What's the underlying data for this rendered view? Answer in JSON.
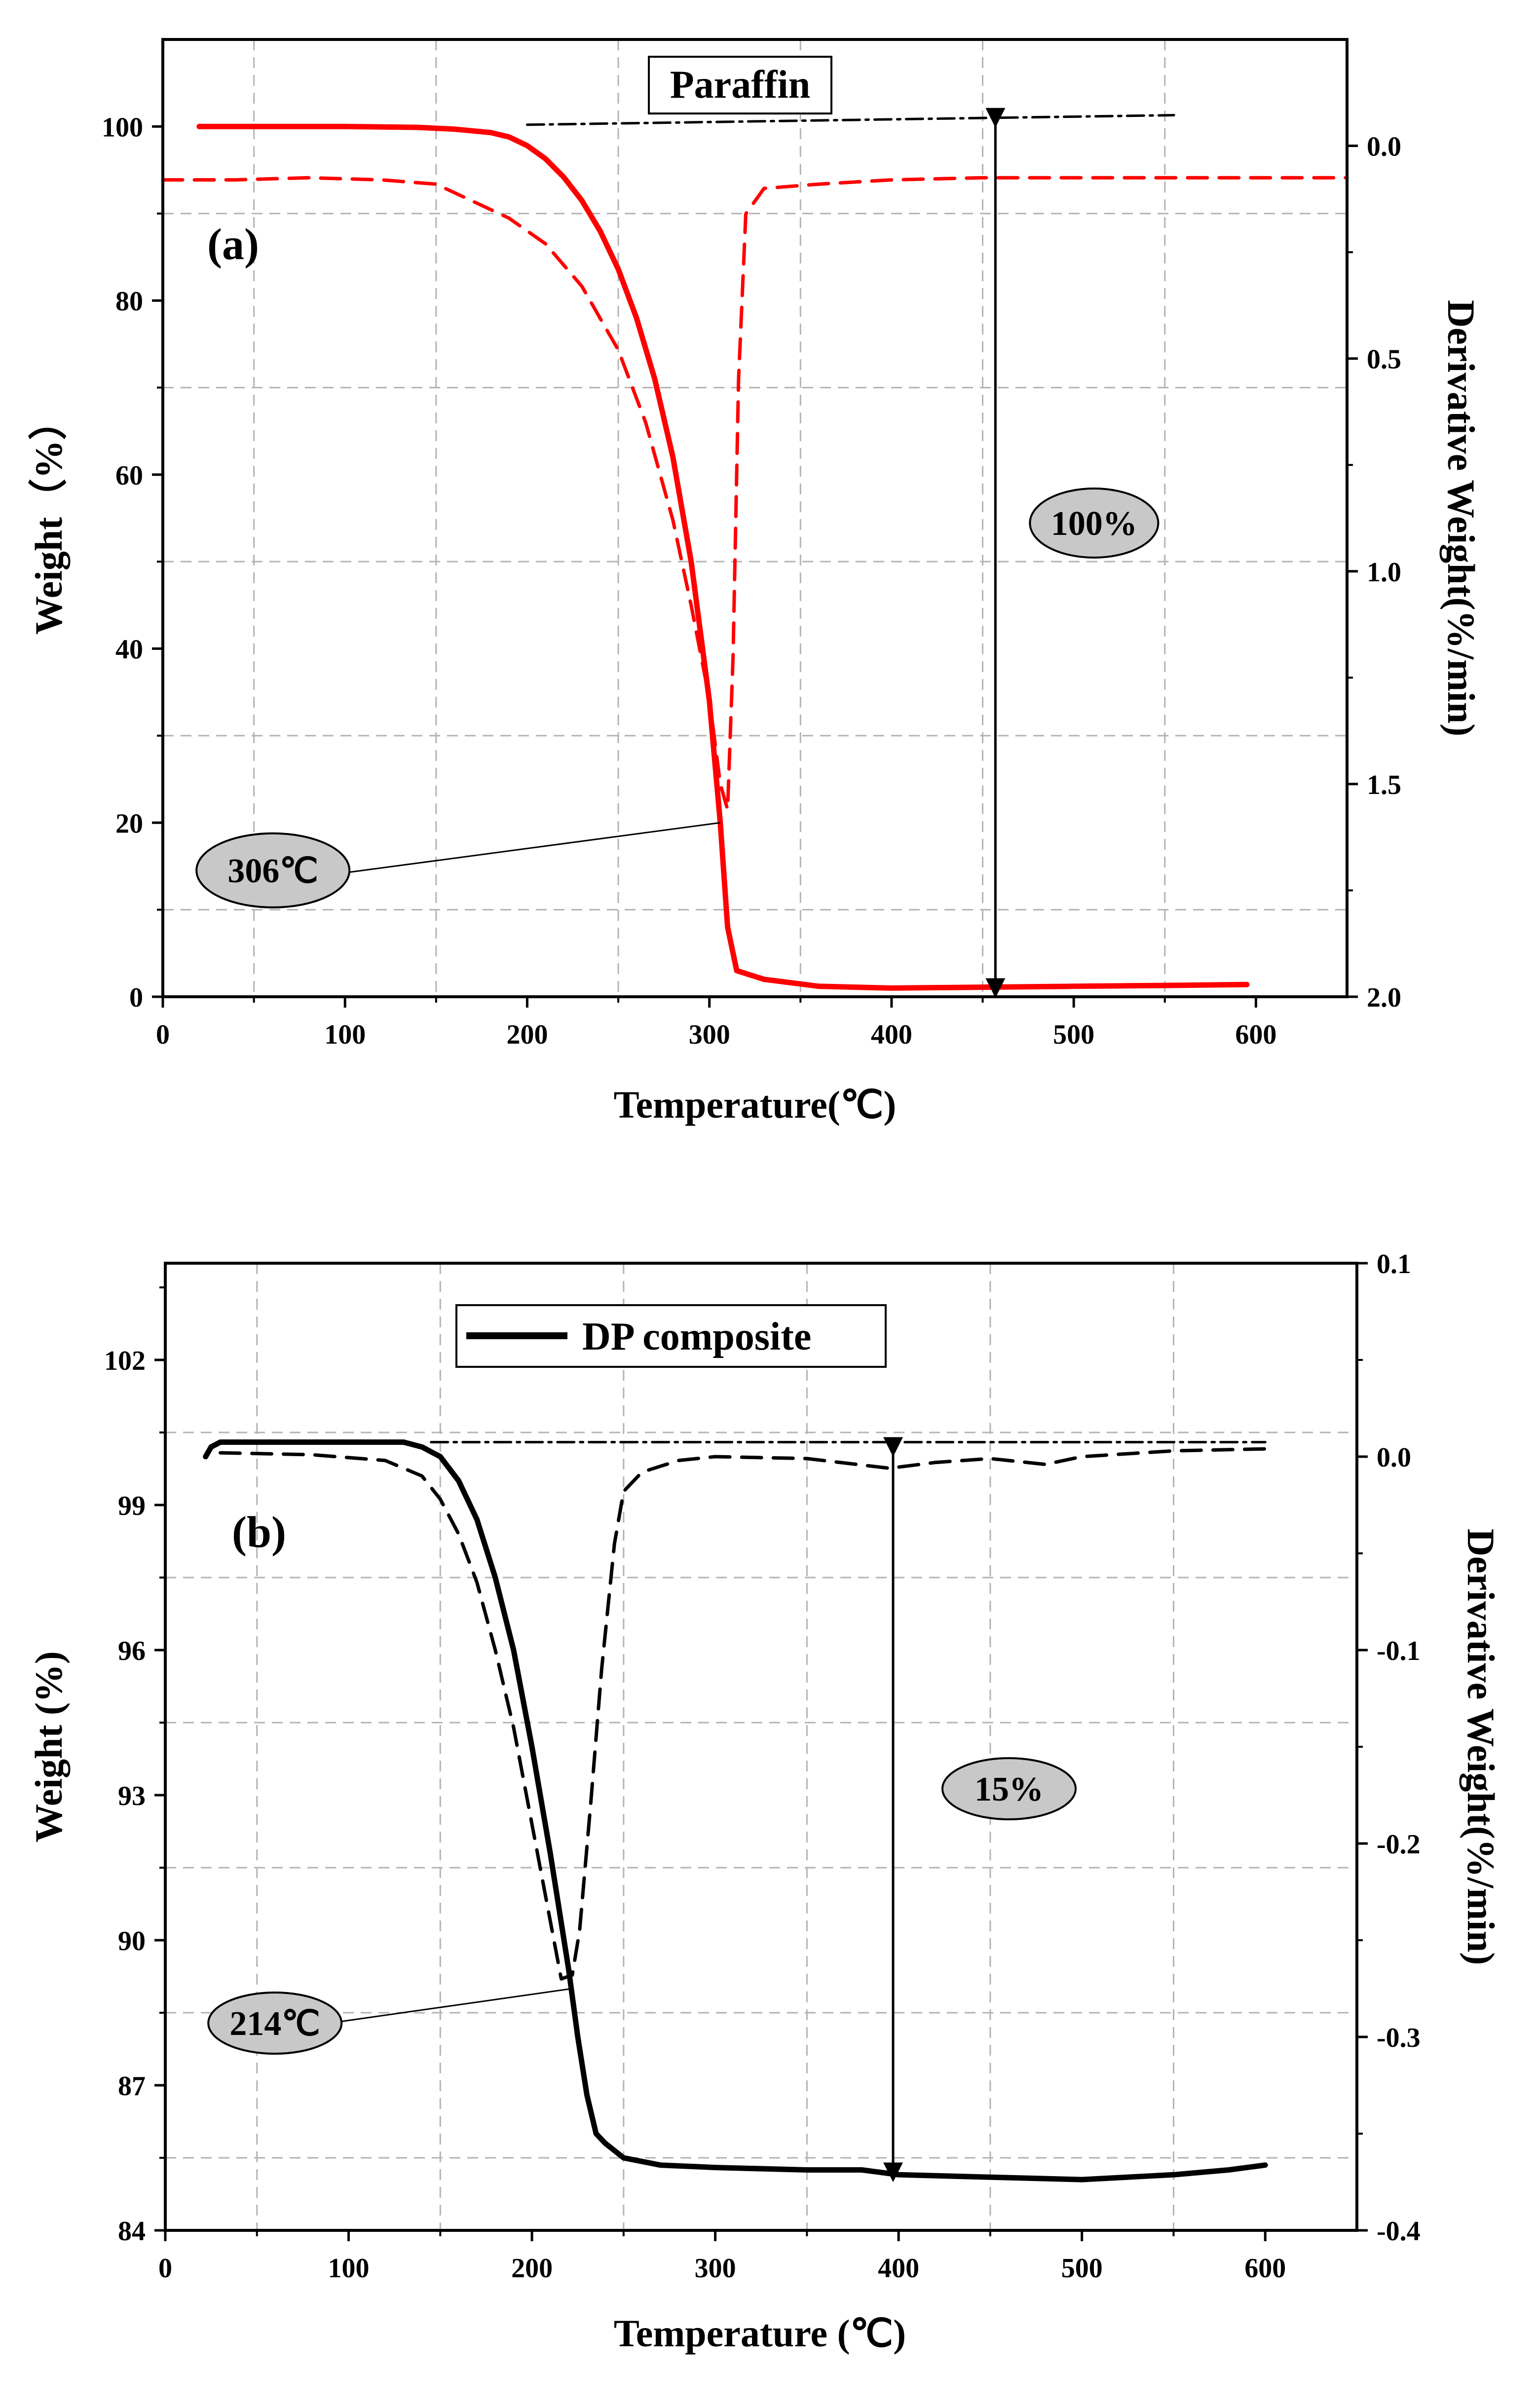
{
  "chart_data": [
    {
      "type": "line",
      "panel_label": "(a)",
      "legend_box": "Paraffin",
      "xlabel": "Temperature(℃)",
      "ylabel": "Weight（%）",
      "y2label": "Derivative Weight(%/min)",
      "xlim": [
        0,
        650
      ],
      "ylim": [
        0,
        110
      ],
      "y2lim": [
        2.0,
        -0.25
      ],
      "x_ticks": [
        "0",
        "100",
        "200",
        "300",
        "400",
        "500",
        "600"
      ],
      "y_ticks": [
        "0",
        "20",
        "40",
        "60",
        "80",
        "100"
      ],
      "y2_ticks": [
        "0.0",
        "0.5",
        "1.0",
        "1.5",
        "2.0"
      ],
      "grid": true,
      "colors": {
        "weight": "#ff0000",
        "derivative": "#ff0000",
        "baseline": "#000000",
        "bubble": "#c8c8c8"
      },
      "series": [
        {
          "name": "Weight",
          "axis": "left",
          "style": "solid",
          "x": [
            20,
            60,
            100,
            140,
            160,
            180,
            190,
            200,
            210,
            220,
            230,
            240,
            250,
            260,
            270,
            280,
            290,
            300,
            306,
            310,
            315,
            330,
            360,
            400,
            450,
            500,
            550,
            595
          ],
          "y": [
            100,
            100,
            100,
            99.9,
            99.7,
            99.3,
            98.8,
            97.8,
            96.3,
            94.2,
            91.5,
            88.0,
            83.6,
            78.0,
            71.0,
            62.0,
            50.0,
            34.0,
            20.0,
            8.0,
            3.0,
            2.0,
            1.2,
            1.0,
            1.1,
            1.2,
            1.3,
            1.4
          ]
        },
        {
          "name": "Derivative weight",
          "axis": "right",
          "style": "dashed",
          "x": [
            0,
            40,
            80,
            120,
            150,
            170,
            190,
            210,
            230,
            250,
            265,
            280,
            290,
            300,
            306,
            310,
            313,
            316,
            320,
            330,
            360,
            400,
            450,
            500,
            550,
            600,
            650
          ],
          "y": [
            0.08,
            0.08,
            0.075,
            0.08,
            0.09,
            0.13,
            0.17,
            0.23,
            0.33,
            0.48,
            0.65,
            0.88,
            1.08,
            1.3,
            1.5,
            1.56,
            1.2,
            0.55,
            0.16,
            0.1,
            0.09,
            0.08,
            0.075,
            0.075,
            0.075,
            0.075,
            0.075
          ]
        },
        {
          "name": "Initial weight baseline",
          "axis": "left",
          "style": "dash-dot",
          "x": [
            200,
            555
          ],
          "y": [
            100.2,
            101.3
          ]
        }
      ],
      "annotations": [
        {
          "text": "306℃",
          "x": 306,
          "y": 20
        },
        {
          "text": "100%",
          "type": "weight-loss arrow",
          "x": 457,
          "y_from": 101,
          "y_to": 1
        }
      ]
    },
    {
      "type": "line",
      "panel_label": "(b)",
      "legend_label": "DP composite",
      "xlabel": "Temperature (℃)",
      "ylabel": "Weight (%)",
      "y2label": "Derivative Weight(%/min)",
      "xlim": [
        0,
        650
      ],
      "ylim": [
        84,
        104
      ],
      "y2lim": [
        -0.4,
        0.1
      ],
      "x_ticks": [
        "0",
        "100",
        "200",
        "300",
        "400",
        "500",
        "600"
      ],
      "y_ticks": [
        "84",
        "87",
        "90",
        "93",
        "96",
        "99",
        "102"
      ],
      "y2_ticks": [
        "-0.4",
        "-0.3",
        "-0.2",
        "-0.1",
        "0.0",
        "0.1"
      ],
      "grid": true,
      "colors": {
        "weight": "#000000",
        "derivative": "#000000",
        "baseline": "#000000",
        "bubble": "#c8c8c8"
      },
      "series": [
        {
          "name": "DP composite",
          "axis": "left",
          "style": "solid",
          "x": [
            22,
            25,
            30,
            50,
            80,
            110,
            130,
            140,
            150,
            160,
            170,
            180,
            190,
            200,
            210,
            215,
            220,
            225,
            230,
            235,
            240,
            250,
            270,
            300,
            350,
            380,
            400,
            450,
            500,
            550,
            580,
            600
          ],
          "y": [
            100.0,
            100.2,
            100.3,
            100.3,
            100.3,
            100.3,
            100.3,
            100.2,
            100.0,
            99.5,
            98.7,
            97.5,
            96.0,
            94.0,
            91.8,
            90.6,
            89.4,
            88.0,
            86.8,
            86.0,
            85.8,
            85.5,
            85.35,
            85.3,
            85.25,
            85.25,
            85.15,
            85.1,
            85.05,
            85.15,
            85.25,
            85.35
          ]
        },
        {
          "name": "Derivative weight",
          "axis": "right",
          "style": "dashed",
          "x": [
            30,
            80,
            120,
            140,
            150,
            160,
            170,
            180,
            190,
            200,
            210,
            216,
            222,
            226,
            232,
            238,
            245,
            250,
            260,
            280,
            300,
            350,
            395,
            420,
            450,
            480,
            500,
            550,
            600
          ],
          "y": [
            0.002,
            0.001,
            -0.002,
            -0.01,
            -0.022,
            -0.04,
            -0.065,
            -0.1,
            -0.14,
            -0.19,
            -0.24,
            -0.27,
            -0.268,
            -0.245,
            -0.18,
            -0.11,
            -0.045,
            -0.018,
            -0.008,
            -0.002,
            0.0,
            -0.001,
            -0.006,
            -0.003,
            -0.001,
            -0.004,
            0.0,
            0.003,
            0.004
          ]
        },
        {
          "name": "Initial weight baseline",
          "axis": "left",
          "style": "dash-dot",
          "x": [
            145,
            600
          ],
          "y": [
            100.3,
            100.3
          ]
        }
      ],
      "annotations": [
        {
          "text": "214℃",
          "x": 222,
          "y": 89.0
        },
        {
          "text": "15%",
          "type": "weight-loss arrow",
          "x": 397,
          "y_from": 100.2,
          "y_to": 85.2
        }
      ]
    }
  ]
}
